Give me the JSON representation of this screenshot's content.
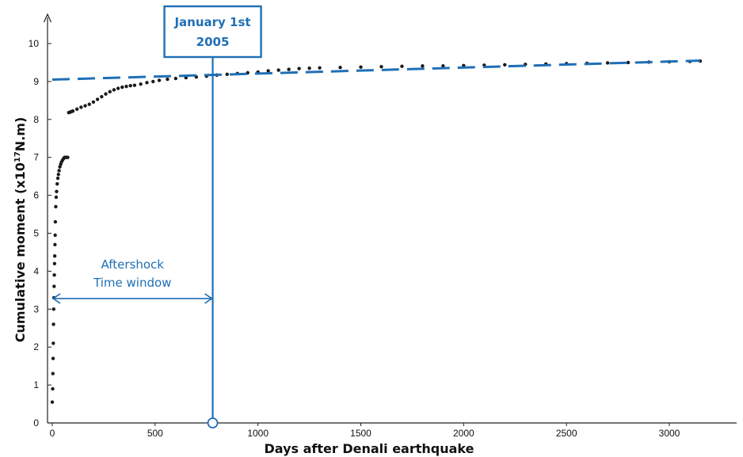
{
  "chart_data": {
    "type": "scatter",
    "title": "",
    "xlabel": "Days after Denali earthquake",
    "ylabel_main": "Cumulative moment (x10",
    "ylabel_exp": "17",
    "ylabel_unit": "N.m)",
    "xlim": [
      0,
      3400
    ],
    "ylim": [
      0,
      10.5
    ],
    "xticks": [
      0,
      500,
      1000,
      1500,
      2000,
      2500,
      3000
    ],
    "yticks": [
      0,
      1,
      2,
      3,
      4,
      5,
      6,
      7,
      8,
      9,
      10
    ],
    "grid": false,
    "legend": "none",
    "colors": {
      "data": "#1a1a1a",
      "accent": "#1f6fb5"
    },
    "series": [
      {
        "type": "scatter",
        "x": [
          0,
          2,
          3,
          4,
          5,
          6,
          7,
          8,
          9,
          10,
          11,
          12,
          13,
          14,
          15,
          17,
          19,
          21,
          24,
          27,
          30,
          33,
          37,
          41,
          45,
          50,
          55,
          60,
          65,
          70,
          75,
          80,
          85,
          90,
          95,
          100,
          120,
          140,
          160,
          180,
          200,
          220,
          240,
          260,
          280,
          300,
          320,
          340,
          360,
          380,
          400,
          430,
          460,
          490,
          520,
          560,
          600,
          650,
          700,
          750,
          800,
          850,
          900,
          950,
          1000,
          1050,
          1100,
          1150,
          1200,
          1250,
          1300,
          1400,
          1500,
          1600,
          1700,
          1800,
          1900,
          2000,
          2100,
          2200,
          2300,
          2400,
          2500,
          2600,
          2700,
          2800,
          2900,
          3000,
          3100,
          3150
        ],
        "y": [
          0.55,
          0.9,
          1.3,
          1.7,
          2.1,
          2.6,
          3.0,
          3.3,
          3.6,
          3.9,
          4.2,
          4.4,
          4.7,
          4.95,
          5.3,
          5.7,
          5.95,
          6.1,
          6.3,
          6.45,
          6.55,
          6.65,
          6.75,
          6.82,
          6.88,
          6.93,
          6.97,
          7.0,
          7.0,
          7.0,
          7.0,
          8.18,
          8.19,
          8.2,
          8.21,
          8.22,
          8.27,
          8.32,
          8.36,
          8.4,
          8.46,
          8.53,
          8.6,
          8.67,
          8.73,
          8.78,
          8.82,
          8.85,
          8.87,
          8.89,
          8.9,
          8.93,
          8.97,
          9.0,
          9.03,
          9.06,
          9.08,
          9.1,
          9.12,
          9.14,
          9.17,
          9.19,
          9.21,
          9.23,
          9.25,
          9.28,
          9.3,
          9.32,
          9.34,
          9.35,
          9.36,
          9.37,
          9.38,
          9.39,
          9.4,
          9.41,
          9.41,
          9.42,
          9.43,
          9.44,
          9.45,
          9.46,
          9.47,
          9.48,
          9.49,
          9.5,
          9.51,
          9.52,
          9.53,
          9.54
        ]
      },
      {
        "type": "line",
        "style": "dashed",
        "x": [
          0,
          3150
        ],
        "y": [
          9.05,
          9.55
        ]
      }
    ],
    "annotations": {
      "callout_line1": "January 1st",
      "callout_line2": "2005",
      "callout_day": 780,
      "window_line1": "Aftershock",
      "window_line2": "Time window",
      "window_y": 3.3
    }
  }
}
